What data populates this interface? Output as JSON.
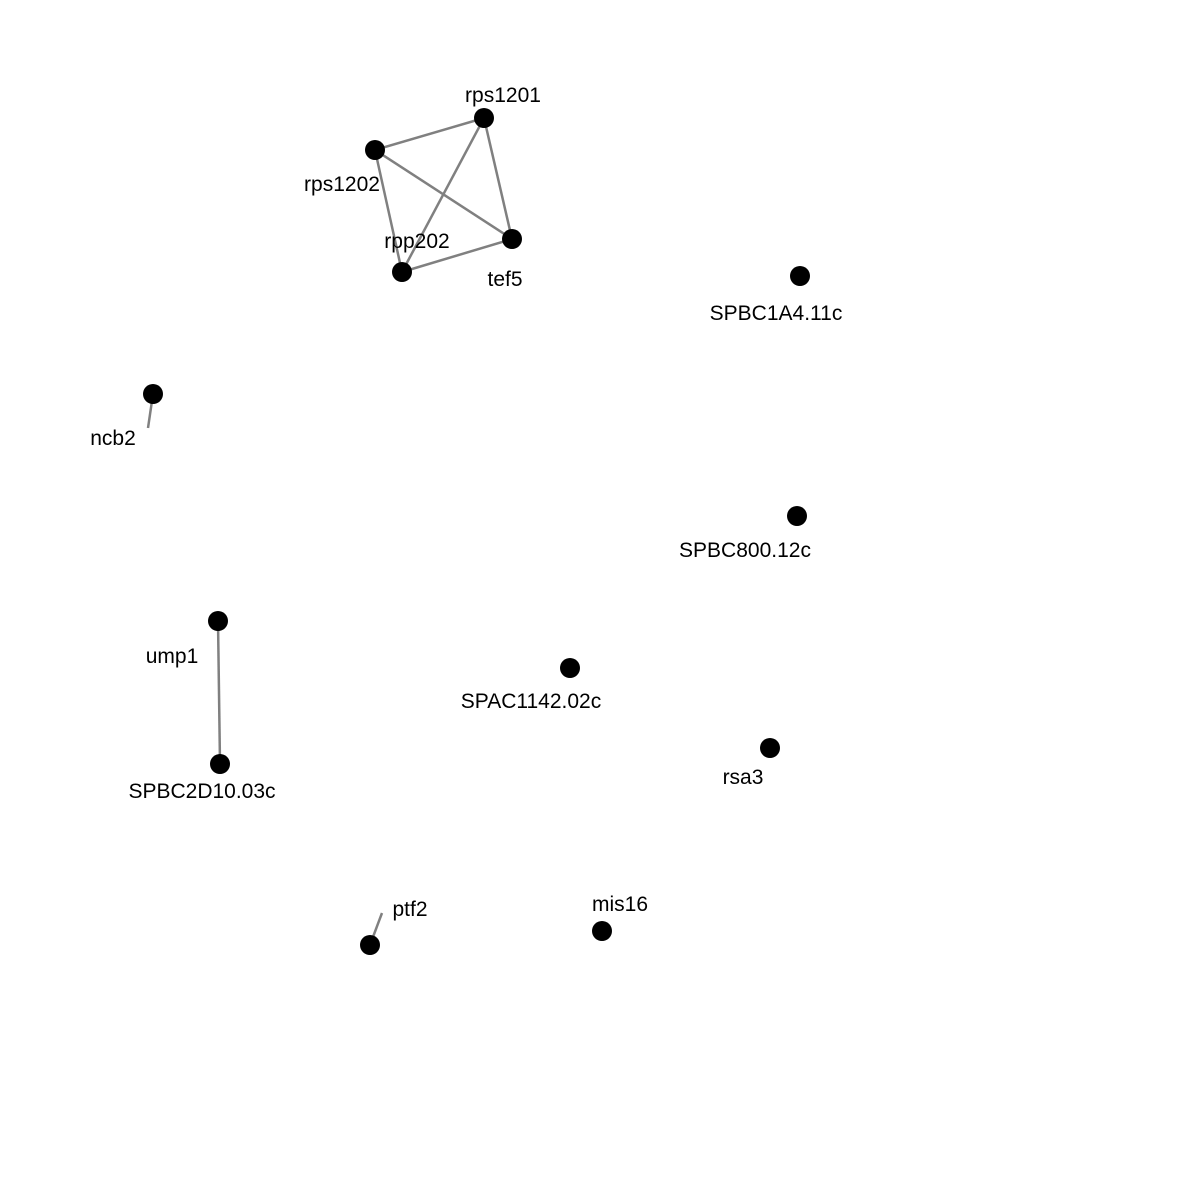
{
  "graph": {
    "node_color": "#000000",
    "edge_color": "#808080",
    "nodes": [
      {
        "id": "rps1201",
        "label": "rps1201"
      },
      {
        "id": "rps1202",
        "label": "rps1202"
      },
      {
        "id": "rpp202",
        "label": "rpp202"
      },
      {
        "id": "tef5",
        "label": "tef5"
      },
      {
        "id": "SPBC1A4.11c",
        "label": "SPBC1A4.11c"
      },
      {
        "id": "ncb2",
        "label": "ncb2"
      },
      {
        "id": "SPBC800.12c",
        "label": "SPBC800.12c"
      },
      {
        "id": "ump1",
        "label": "ump1"
      },
      {
        "id": "SPAC1142.02c",
        "label": "SPAC1142.02c"
      },
      {
        "id": "rsa3",
        "label": "rsa3"
      },
      {
        "id": "SPBC2D10.03c",
        "label": "SPBC2D10.03c"
      },
      {
        "id": "ptf2",
        "label": "ptf2"
      },
      {
        "id": "mis16",
        "label": "mis16"
      }
    ],
    "edges": [
      {
        "source": "rps1202",
        "target": "rps1201"
      },
      {
        "source": "rps1202",
        "target": "tef5"
      },
      {
        "source": "rps1202",
        "target": "rpp202"
      },
      {
        "source": "rps1201",
        "target": "tef5"
      },
      {
        "source": "rps1201",
        "target": "rpp202"
      },
      {
        "source": "rpp202",
        "target": "tef5"
      },
      {
        "source": "ump1",
        "target": "SPBC2D10.03c"
      }
    ]
  }
}
